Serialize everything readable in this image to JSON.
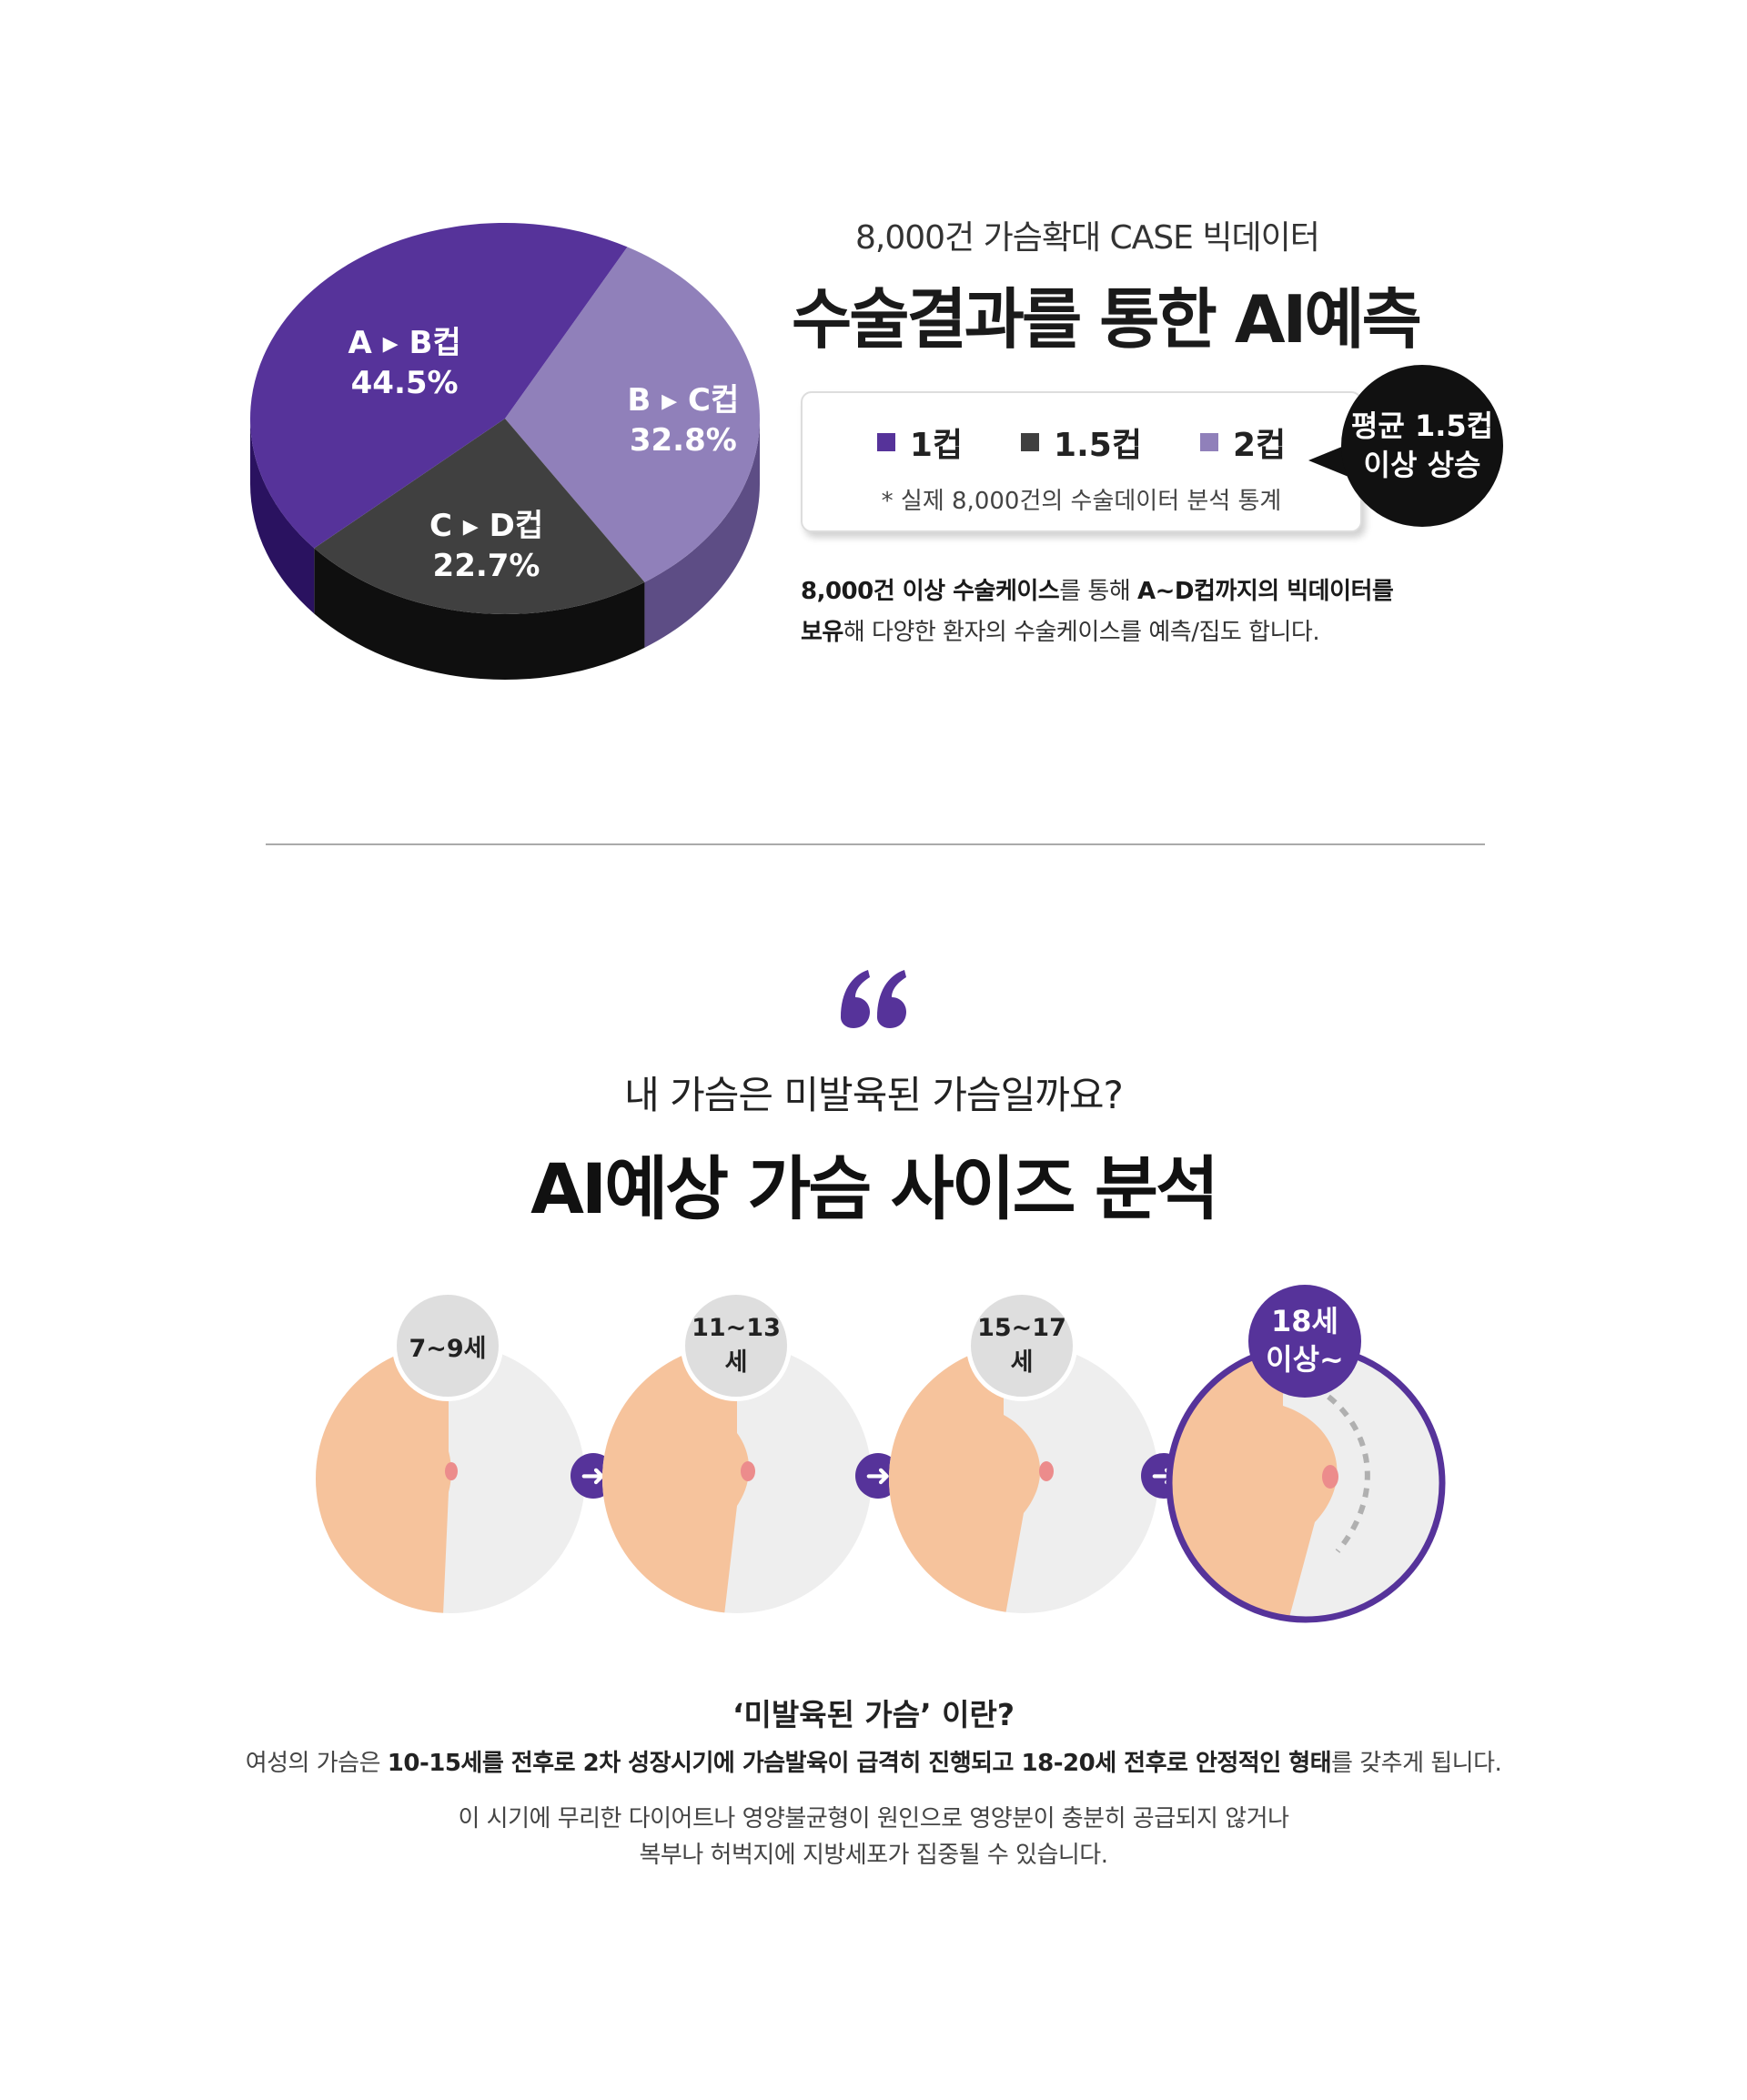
{
  "chart_data": {
    "type": "pie",
    "slices": [
      {
        "label_from": "A",
        "label_to": "B컵",
        "value": 44.5,
        "value_text": "44.5%",
        "color": "#56339a"
      },
      {
        "label_from": "B",
        "label_to": "C컵",
        "value": 32.8,
        "value_text": "32.8%",
        "color": "#9080ba"
      },
      {
        "label_from": "C",
        "label_to": "D컵",
        "value": 22.7,
        "value_text": "22.7%",
        "color": "#404040"
      }
    ],
    "side_colors": [
      "#2a1260",
      "#5d4d85",
      "#0f0f0f"
    ]
  },
  "section1": {
    "subtitle": "8,000건 가슴확대 CASE 빅데이터",
    "title": "수술결과를 통한 AI예측",
    "legend": [
      {
        "label": "1컵",
        "color": "#56339a"
      },
      {
        "label": "1.5컵",
        "color": "#404040"
      },
      {
        "label": "2컵",
        "color": "#9080ba"
      }
    ],
    "legend_note": "* 실제 8,000건의 수술데이터 분석 통계",
    "bubble_line1": "평균 1.5컵",
    "bubble_line2": "이상 상승",
    "desc_bold1": "8,000건 이상 수술케이스",
    "desc_mid1": "를 통해 ",
    "desc_bold2": "A~D컵까지의 빅데이터를",
    "desc_bold3": "보유",
    "desc_mid2": "해 다양한 환자의 수술케이스를 예측/집도 합니다."
  },
  "section2": {
    "subtitle": "내 가슴은 미발육된 가슴일까요?",
    "title": "AI예상 가슴 사이즈 분석",
    "stages": [
      {
        "age": "7~9세"
      },
      {
        "age": "11~13세"
      },
      {
        "age": "15~17세"
      },
      {
        "age_line1": "18세",
        "age_line2": "이상~"
      }
    ],
    "arrow_glyph": "➜",
    "question": "‘미발육된 가슴’ 이란?",
    "p1_a": "여성의 가슴은 ",
    "p1_b": "10-15세를 전후로 2차 성장시기에 가슴발육이 급격히 진행되고 18-20세 전후로 안정적인 형태",
    "p1_c": "를 갖추게 됩니다.",
    "p2_line1": "이 시기에 무리한 다이어트나 영양불균형이 원인으로 영양분이 충분히 공급되지 않거나",
    "p2_line2": "복부나 허벅지에 지방세포가 집중될 수 있습니다."
  }
}
